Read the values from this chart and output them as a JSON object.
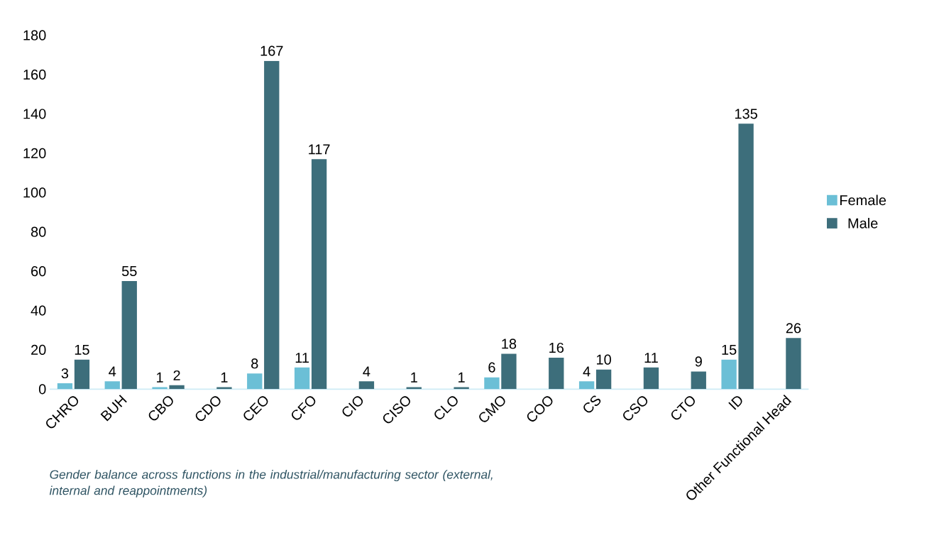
{
  "chart_data": {
    "type": "bar",
    "categories": [
      "CHRO",
      "BUH",
      "CBO",
      "CDO",
      "CEO",
      "CFO",
      "CIO",
      "CISO",
      "CLO",
      "CMO",
      "COO",
      "CS",
      "CSO",
      "CTO",
      "ID",
      "Other Functional Head"
    ],
    "series": [
      {
        "name": "Female",
        "color": "#6bbfd6",
        "values": [
          3,
          4,
          1,
          0,
          8,
          11,
          0,
          0,
          0,
          6,
          0,
          4,
          0,
          0,
          15,
          0
        ],
        "value_labels": [
          "3",
          "4",
          "1",
          null,
          "8",
          "11",
          null,
          null,
          null,
          "6",
          null,
          "4",
          null,
          null,
          "15",
          null
        ]
      },
      {
        "name": "Male",
        "color": "#3d6e7b",
        "values": [
          15,
          55,
          2,
          1,
          167,
          117,
          4,
          1,
          1,
          18,
          16,
          10,
          11,
          9,
          135,
          26
        ],
        "value_labels": [
          "15",
          "55",
          "2",
          "1",
          "167",
          "117",
          "4",
          "1",
          "1",
          "18",
          "16",
          "10",
          "11",
          "9",
          "135",
          "26"
        ]
      }
    ],
    "ylim": [
      0,
      180
    ],
    "yticks": [
      0,
      20,
      40,
      60,
      80,
      100,
      120,
      140,
      160,
      180
    ],
    "legend": "right",
    "annotations": [
      "Gender balance across functions in the industrial/manufacturing sector (external, internal and reappointments)"
    ]
  }
}
